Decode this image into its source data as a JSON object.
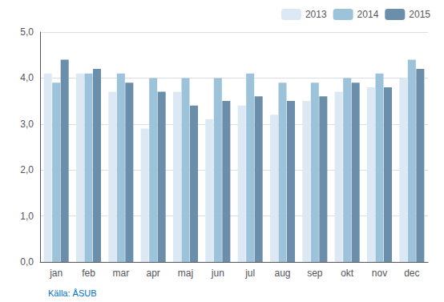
{
  "chart_data": {
    "type": "bar",
    "categories": [
      "jan",
      "feb",
      "mar",
      "apr",
      "maj",
      "jun",
      "jul",
      "aug",
      "sep",
      "okt",
      "nov",
      "dec"
    ],
    "series": [
      {
        "name": "2013",
        "color": "#dce9f5",
        "values": [
          4.1,
          4.1,
          3.7,
          2.9,
          3.7,
          3.1,
          3.4,
          3.2,
          3.5,
          3.7,
          3.8,
          4.0
        ]
      },
      {
        "name": "2014",
        "color": "#9dc3da",
        "values": [
          3.9,
          4.1,
          4.1,
          4.0,
          4.0,
          4.0,
          4.1,
          3.9,
          3.9,
          4.0,
          4.1,
          4.4
        ]
      },
      {
        "name": "2015",
        "color": "#6b8eaa",
        "values": [
          4.4,
          4.2,
          3.9,
          3.7,
          3.4,
          3.5,
          3.6,
          3.5,
          3.6,
          3.9,
          3.8,
          4.2
        ]
      }
    ],
    "ylim": [
      0,
      5.0
    ],
    "yticks": [
      {
        "value": 0.0,
        "label": "0,0"
      },
      {
        "value": 1.0,
        "label": "1,0"
      },
      {
        "value": 2.0,
        "label": "2,0"
      },
      {
        "value": 3.0,
        "label": "3,0"
      },
      {
        "value": 4.0,
        "label": "4,0"
      },
      {
        "value": 5.0,
        "label": "5,0"
      }
    ],
    "grid": true,
    "legend": "upper right",
    "annotations": [
      {
        "text": "Källa: ÅSUB",
        "color": "#0070c0"
      }
    ]
  }
}
